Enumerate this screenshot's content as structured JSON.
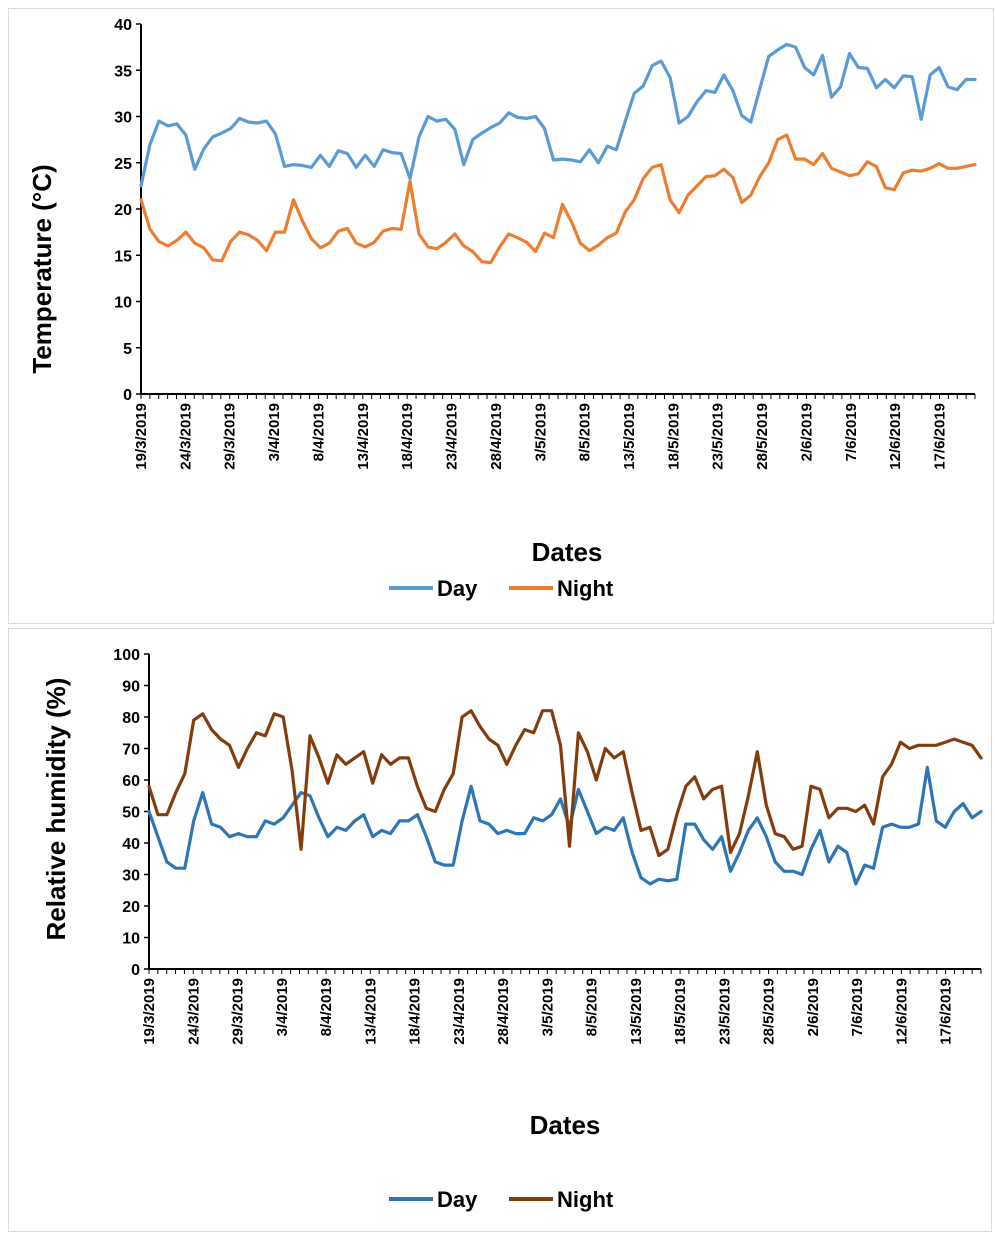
{
  "chart_data": [
    {
      "type": "line",
      "xlabel": "Dates",
      "ylabel": "Temperature (°C)",
      "ylim": [
        0,
        40
      ],
      "yticks": [
        "0",
        "5",
        "10",
        "15",
        "20",
        "25",
        "30",
        "35",
        "40"
      ],
      "x_tick_labels": [
        "19/3/2019",
        "24/3/2019",
        "29/3/2019",
        "3/4/2019",
        "8/4/2019",
        "13/4/2019",
        "18/4/2019",
        "23/4/2019",
        "28/4/2019",
        "3/5/2019",
        "8/5/2019",
        "13/5/2019",
        "18/5/2019",
        "23/5/2019",
        "28/5/2019",
        "2/6/2019",
        "7/6/2019",
        "12/6/2019",
        "17/6/2019"
      ],
      "x_start": "19/3/2019",
      "x_end": "21/6/2019",
      "grid": false,
      "legend_position": "bottom",
      "series": [
        {
          "name": "Day",
          "color": "#5b9bd5",
          "values": [
            22.5,
            27,
            29.5,
            29,
            29.2,
            28,
            24.3,
            26.5,
            27.8,
            28.2,
            28.7,
            29.8,
            29.4,
            29.3,
            29.5,
            28.1,
            24.6,
            24.8,
            24.7,
            24.5,
            25.8,
            24.6,
            26.3,
            26,
            24.5,
            25.8,
            24.6,
            26.4,
            26.1,
            26,
            23.3,
            27.8,
            30,
            29.5,
            29.7,
            28.6,
            24.8,
            27.5,
            28.2,
            28.8,
            29.3,
            30.4,
            29.9,
            29.8,
            30,
            28.7,
            25.3,
            25.4,
            25.3,
            25.1,
            26.4,
            25,
            26.8,
            26.4,
            29.5,
            32.5,
            33.3,
            35.5,
            36,
            34.2,
            29.3,
            30,
            31.6,
            32.8,
            32.6,
            34.5,
            32.8,
            30.1,
            29.4,
            33,
            36.5,
            37.2,
            37.8,
            37.5,
            35.3,
            34.5,
            36.6,
            32.1,
            33.2,
            36.8,
            35.3,
            35.2,
            33.1,
            34,
            33.1,
            34.4,
            34.3,
            29.7,
            34.5,
            35.3,
            33.2,
            32.9,
            34,
            34
          ]
        },
        {
          "name": "Night",
          "color": "#ed7d31",
          "values": [
            21,
            17.8,
            16.5,
            16,
            16.6,
            17.5,
            16.3,
            15.8,
            14.5,
            14.4,
            16.5,
            17.5,
            17.2,
            16.6,
            15.5,
            17.5,
            17.5,
            21,
            18.7,
            16.8,
            15.8,
            16.3,
            17.6,
            17.9,
            16.3,
            15.9,
            16.4,
            17.6,
            17.9,
            17.8,
            23,
            17.3,
            15.9,
            15.7,
            16.4,
            17.3,
            16,
            15.4,
            14.3,
            14.2,
            15.9,
            17.3,
            16.9,
            16.4,
            15.4,
            17.4,
            16.9,
            20.5,
            18.6,
            16.3,
            15.5,
            16.1,
            16.9,
            17.4,
            19.7,
            21,
            23.3,
            24.5,
            24.8,
            21,
            19.6,
            21.5,
            22.5,
            23.5,
            23.6,
            24.3,
            23.4,
            20.7,
            21.5,
            23.5,
            25,
            27.5,
            28,
            25.4,
            25.4,
            24.8,
            26,
            24.4,
            24,
            23.6,
            23.8,
            25.1,
            24.6,
            22.3,
            22.1,
            23.9,
            24.2,
            24.1,
            24.4,
            24.9,
            24.4,
            24.4,
            24.6,
            24.8
          ]
        }
      ]
    },
    {
      "type": "line",
      "xlabel": "Dates",
      "ylabel": "Relative humidity (%)",
      "ylim": [
        0,
        100
      ],
      "yticks": [
        "0",
        "10",
        "20",
        "30",
        "40",
        "50",
        "60",
        "70",
        "80",
        "90",
        "100"
      ],
      "x_tick_labels": [
        "19/3/2019",
        "24/3/2019",
        "29/3/2019",
        "3/4/2019",
        "8/4/2019",
        "13/4/2019",
        "18/4/2019",
        "23/4/2019",
        "28/4/2019",
        "3/5/2019",
        "8/5/2019",
        "13/5/2019",
        "18/5/2019",
        "23/5/2019",
        "28/5/2019",
        "2/6/2019",
        "7/6/2019",
        "12/6/2019",
        "17/6/2019"
      ],
      "x_start": "19/3/2019",
      "x_end": "21/6/2019",
      "grid": false,
      "legend_position": "bottom",
      "series": [
        {
          "name": "Day",
          "color": "#2e75b6",
          "values": [
            50,
            42,
            34,
            32,
            32,
            47,
            56,
            46,
            45,
            42,
            43,
            42,
            42,
            47,
            46,
            48,
            52,
            56,
            55,
            48,
            42,
            45,
            44,
            47,
            49,
            42,
            44,
            43,
            47,
            47,
            49,
            42,
            34,
            33,
            33,
            47,
            58,
            47,
            46,
            43,
            44,
            43,
            43,
            48,
            47,
            49,
            54,
            45,
            57,
            50,
            43,
            45,
            44,
            48,
            37,
            29,
            27,
            28.5,
            28,
            28.5,
            46,
            46,
            41,
            38,
            42,
            31,
            37,
            44,
            48,
            42,
            34,
            31,
            31,
            30,
            38,
            44,
            34,
            39,
            37,
            27,
            33,
            32,
            45,
            46,
            45,
            45,
            46,
            64,
            47,
            45,
            50,
            52.5,
            48,
            50
          ]
        },
        {
          "name": "Night",
          "color": "#843c0c",
          "values": [
            58,
            49,
            49,
            56,
            62,
            79,
            81,
            76,
            73,
            71,
            64,
            70,
            75,
            74,
            81,
            80,
            63,
            38,
            74,
            67,
            59,
            68,
            65,
            67,
            69,
            59,
            68,
            65,
            67,
            67,
            58,
            51,
            50,
            57,
            62,
            80,
            82,
            77,
            73,
            71,
            65,
            71,
            76,
            75,
            82,
            82,
            71,
            39,
            75,
            69,
            60,
            70,
            67,
            69,
            56,
            44,
            45,
            36,
            38,
            49,
            58,
            61,
            54,
            57,
            58,
            37,
            43,
            55,
            69,
            52,
            43,
            42,
            38,
            39,
            58,
            57,
            48,
            51,
            51,
            50,
            52,
            46,
            61,
            65,
            72,
            70,
            71,
            71,
            71,
            72,
            73,
            72,
            71,
            67
          ]
        }
      ]
    }
  ]
}
